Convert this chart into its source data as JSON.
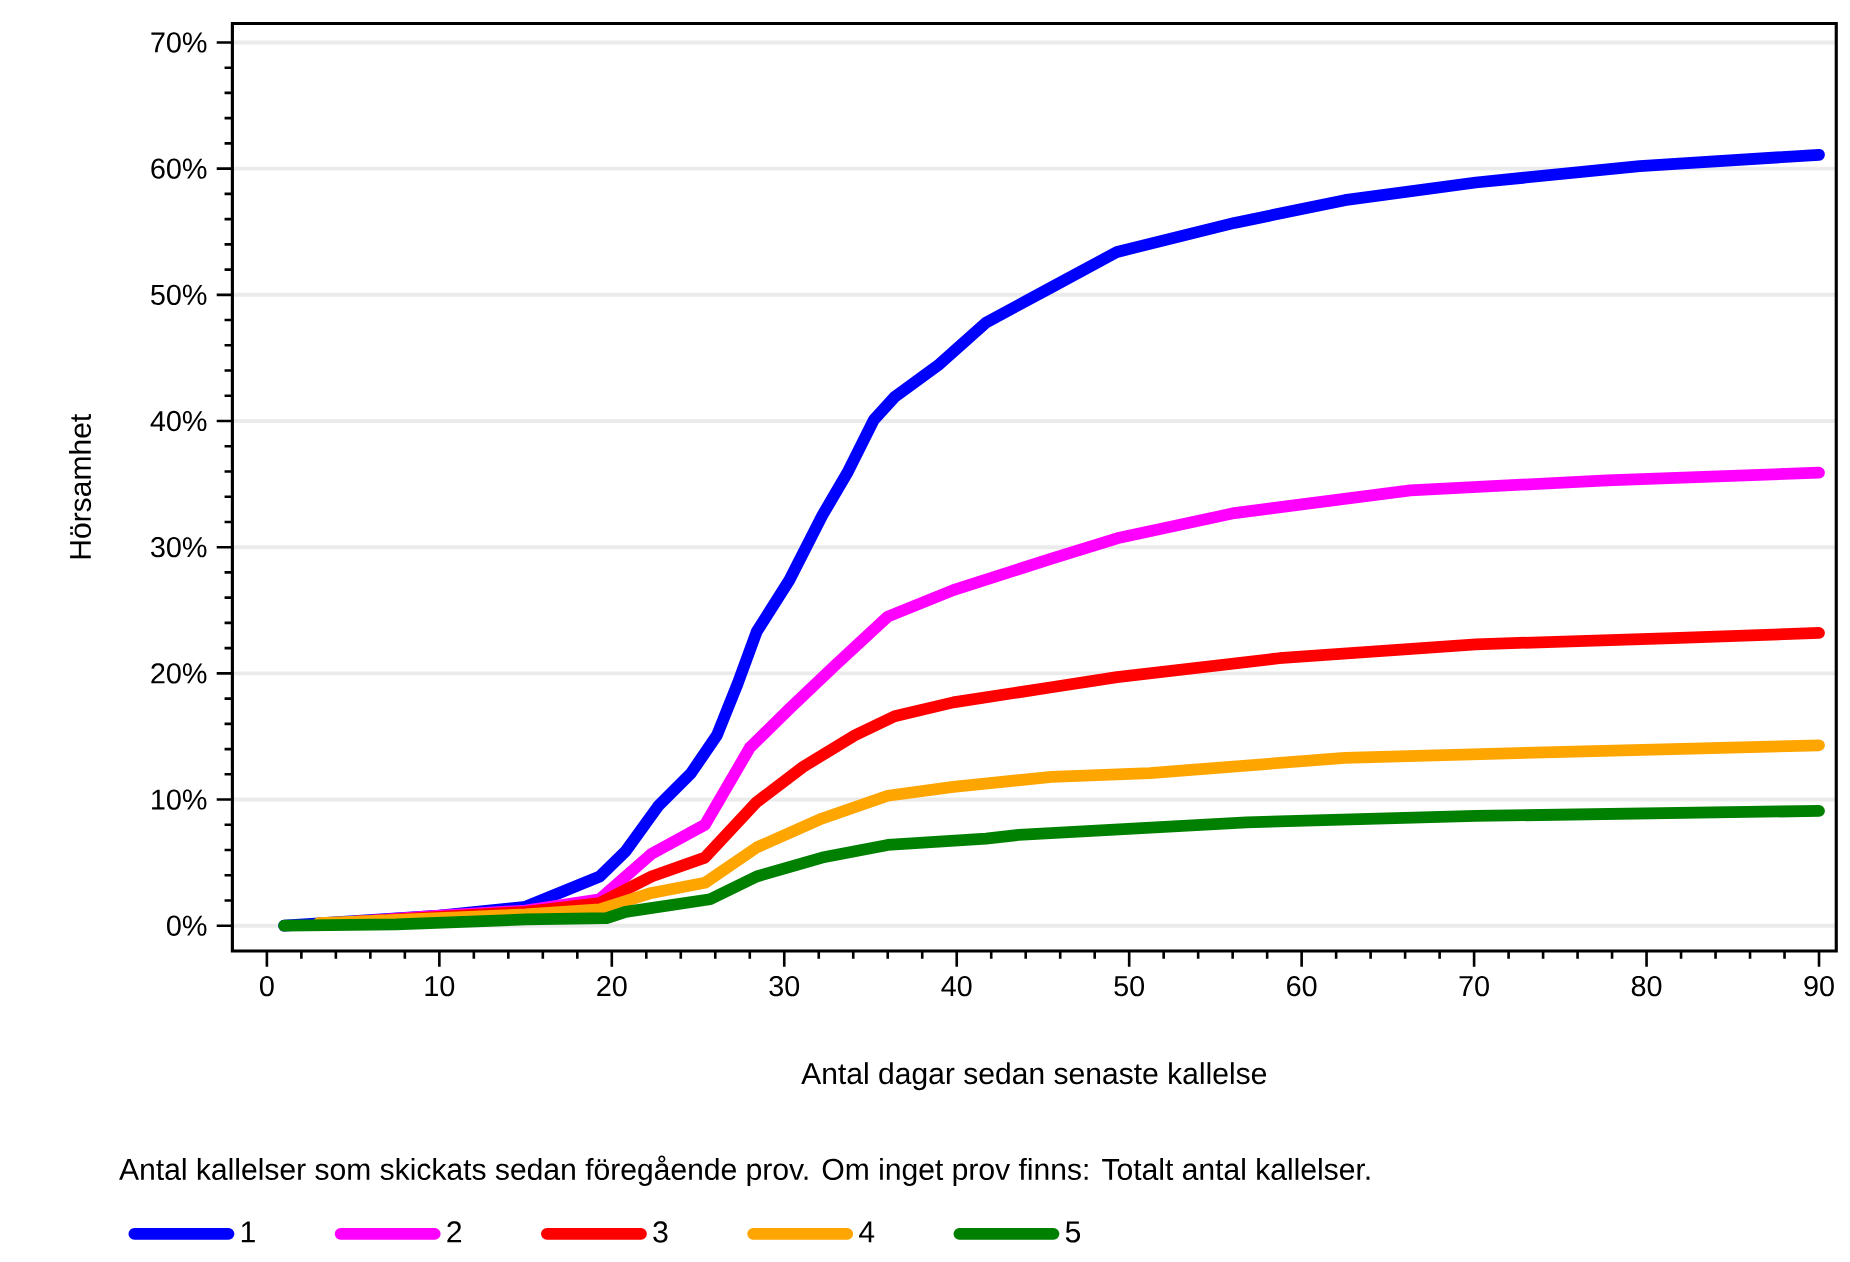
{
  "chart_data": {
    "type": "line",
    "xlabel": "Antal dagar sedan senaste kallelse",
    "ylabel": "Hörsamhet",
    "legend_title": "Antal kallelser som skickats sedan föregående prov. Om inget prov finns: Totalt antal kallelser.",
    "xlim": [
      -2,
      91
    ],
    "ylim": [
      -2,
      71.5
    ],
    "xticks": [
      0,
      10,
      20,
      30,
      40,
      50,
      60,
      70,
      80,
      90
    ],
    "yticks": [
      {
        "value": 0,
        "label": "0%"
      },
      {
        "value": 10,
        "label": "10%"
      },
      {
        "value": 20,
        "label": "20%"
      },
      {
        "value": 30,
        "label": "30%"
      },
      {
        "value": 40,
        "label": "40%"
      },
      {
        "value": 50,
        "label": "50%"
      },
      {
        "value": 60,
        "label": "60%"
      },
      {
        "value": 70,
        "label": "70%"
      }
    ],
    "grid": "y",
    "legend": "bottom",
    "series": [
      {
        "name": "1",
        "color": "#0000ff",
        "x": [
          1,
          10,
          15,
          19.3,
          20.8,
          22.7,
          24.6,
          26.1,
          27.3,
          28.4,
          30.3,
          32.2,
          33.7,
          35.2,
          36.4,
          39.0,
          41.7,
          45.5,
          49.3,
          56.1,
          62.5,
          70.1,
          79.6,
          90
        ],
        "values": [
          0,
          0.8,
          1.5,
          3.9,
          5.9,
          9.5,
          12.1,
          15.1,
          19.2,
          23.3,
          27.4,
          32.5,
          36.0,
          40.1,
          41.9,
          44.5,
          47.8,
          50.6,
          53.4,
          55.7,
          57.5,
          58.9,
          60.2,
          61.1
        ]
      },
      {
        "name": "2",
        "color": "#ff00ff",
        "x": [
          5,
          10,
          15,
          19.3,
          22.3,
          25.4,
          28.0,
          30.3,
          33.0,
          36.0,
          39.8,
          45.5,
          49.3,
          56.1,
          66.3,
          77.7,
          90
        ],
        "values": [
          0.3,
          0.8,
          1.2,
          2.1,
          5.7,
          8.0,
          14.1,
          17.2,
          20.7,
          24.5,
          26.6,
          29.1,
          30.7,
          32.7,
          34.5,
          35.3,
          35.9
        ]
      },
      {
        "name": "3",
        "color": "#ff0000",
        "x": [
          5,
          10,
          15,
          19.3,
          22.3,
          25.4,
          28.4,
          31.1,
          34.1,
          36.4,
          39.8,
          45.5,
          49.3,
          58.7,
          70.1,
          81.5,
          90
        ],
        "values": [
          0.3,
          0.7,
          1.1,
          1.8,
          3.9,
          5.4,
          9.8,
          12.6,
          15.1,
          16.6,
          17.7,
          18.9,
          19.7,
          21.2,
          22.3,
          22.8,
          23.2
        ]
      },
      {
        "name": "4",
        "color": "#ffa500",
        "x": [
          3,
          10,
          15,
          19.3,
          22.3,
          25.4,
          28.4,
          32.2,
          36.0,
          39.8,
          45.5,
          51.2,
          62.5,
          75.8,
          90
        ],
        "values": [
          0.2,
          0.6,
          0.9,
          1.3,
          2.6,
          3.4,
          6.2,
          8.5,
          10.3,
          11.0,
          11.8,
          12.1,
          13.3,
          13.8,
          14.3
        ]
      },
      {
        "name": "5",
        "color": "#008000",
        "x": [
          1,
          7.5,
          15,
          19.7,
          20.8,
          25.7,
          28.4,
          32.2,
          36.0,
          41.7,
          43.6,
          56.8,
          70.1,
          90
        ],
        "values": [
          0,
          0.1,
          0.5,
          0.6,
          1.1,
          2.1,
          3.9,
          5.4,
          6.4,
          6.9,
          7.2,
          8.2,
          8.7,
          9.1
        ]
      }
    ]
  }
}
